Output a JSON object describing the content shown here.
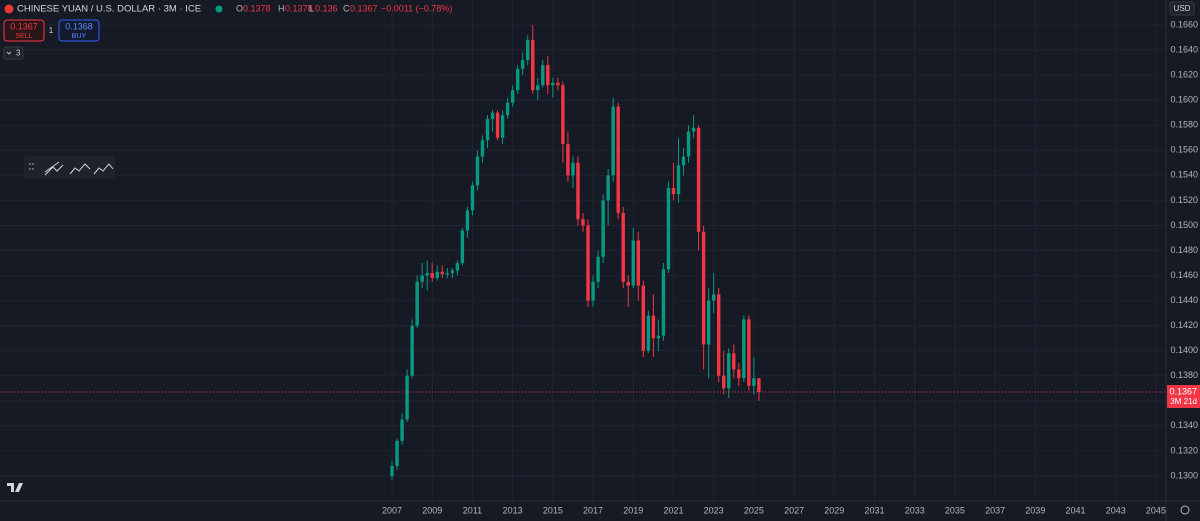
{
  "ui": {
    "symbol": "CHINESE YUAN / U.S. DOLLAR · 3M · ICE",
    "ohlc_labels": [
      "O",
      "H",
      "L",
      "C"
    ],
    "change": "−0.0011 (−0.78%)",
    "sell_label": "SELL",
    "quantity": "1",
    "buy_price": "0.1368",
    "buy_label": "BUY",
    "indicators": "3",
    "currency": "USD",
    "countdown": "3M 21d"
  },
  "chart_data": {
    "type": "candlestick",
    "title": "CHINESE YUAN / U.S. DOLLAR · 3M · ICE",
    "up_color": "#089981",
    "down_color": "#f23645",
    "grid": true,
    "x": [
      2007,
      2007.25,
      2007.5,
      2007.75,
      2008,
      2008.25,
      2008.5,
      2008.75,
      2009,
      2009.25,
      2009.5,
      2009.75,
      2010,
      2010.25,
      2010.5,
      2010.75,
      2011,
      2011.25,
      2011.5,
      2011.75,
      2012,
      2012.25,
      2012.5,
      2012.75,
      2013,
      2013.25,
      2013.5,
      2013.75,
      2014,
      2014.25,
      2014.5,
      2014.75,
      2015,
      2015.25,
      2015.5,
      2015.75,
      2016,
      2016.25,
      2016.5,
      2016.75,
      2017,
      2017.25,
      2017.5,
      2017.75,
      2018,
      2018.25,
      2018.5,
      2018.75,
      2019,
      2019.25,
      2019.5,
      2019.75,
      2020,
      2020.25,
      2020.5,
      2020.75,
      2021,
      2021.25,
      2021.5,
      2021.75,
      2022,
      2022.25,
      2022.5,
      2022.75,
      2023,
      2023.25,
      2023.5,
      2023.75,
      2024,
      2024.25,
      2024.5,
      2024.75,
      2025,
      2025.25
    ],
    "open": [
      0.13,
      0.1308,
      0.1328,
      0.1345,
      0.138,
      0.142,
      0.1455,
      0.146,
      0.1462,
      0.1458,
      0.1463,
      0.1461,
      0.1462,
      0.1464,
      0.147,
      0.1496,
      0.1512,
      0.1532,
      0.1555,
      0.1568,
      0.1585,
      0.159,
      0.157,
      0.1588,
      0.1598,
      0.1608,
      0.1625,
      0.1632,
      0.1648,
      0.1608,
      0.1612,
      0.1628,
      0.1612,
      0.1614,
      0.1612,
      0.1565,
      0.154,
      0.155,
      0.1505,
      0.15,
      0.144,
      0.1455,
      0.1475,
      0.152,
      0.154,
      0.1595,
      0.151,
      0.1455,
      0.1452,
      0.1488,
      0.1452,
      0.14,
      0.1428,
      0.141,
      0.1412,
      0.1465,
      0.153,
      0.1525,
      0.1548,
      0.1555,
      0.1575,
      0.1578,
      0.1495,
      0.1405,
      0.144,
      0.1445,
      0.138,
      0.137,
      0.1398,
      0.1385,
      0.1378,
      0.1425,
      0.1372,
      0.1378
    ],
    "high": [
      0.1312,
      0.133,
      0.135,
      0.1385,
      0.1425,
      0.146,
      0.147,
      0.1472,
      0.147,
      0.1468,
      0.1468,
      0.1466,
      0.1466,
      0.1472,
      0.1498,
      0.1515,
      0.1535,
      0.156,
      0.1572,
      0.1588,
      0.1592,
      0.1592,
      0.1592,
      0.1602,
      0.1612,
      0.1628,
      0.1638,
      0.1652,
      0.166,
      0.1618,
      0.1632,
      0.1635,
      0.1618,
      0.1618,
      0.1615,
      0.1575,
      0.1555,
      0.1555,
      0.151,
      0.1505,
      0.146,
      0.148,
      0.1525,
      0.1545,
      0.1602,
      0.1598,
      0.1515,
      0.146,
      0.1498,
      0.1495,
      0.1456,
      0.1432,
      0.1445,
      0.1425,
      0.147,
      0.1535,
      0.155,
      0.157,
      0.1562,
      0.158,
      0.1588,
      0.158,
      0.15,
      0.145,
      0.1462,
      0.145,
      0.14,
      0.1402,
      0.1405,
      0.139,
      0.1428,
      0.1428,
      0.1395,
      0.1378
    ],
    "low": [
      0.1297,
      0.1305,
      0.1325,
      0.1343,
      0.1378,
      0.1418,
      0.145,
      0.1448,
      0.1455,
      0.1456,
      0.1458,
      0.1458,
      0.1458,
      0.146,
      0.1468,
      0.149,
      0.1508,
      0.1528,
      0.155,
      0.1562,
      0.1575,
      0.1568,
      0.1565,
      0.1585,
      0.1595,
      0.1605,
      0.162,
      0.1628,
      0.1605,
      0.16,
      0.161,
      0.1605,
      0.1602,
      0.1608,
      0.155,
      0.1535,
      0.153,
      0.15,
      0.1495,
      0.1435,
      0.1435,
      0.145,
      0.147,
      0.15,
      0.1535,
      0.1505,
      0.145,
      0.1435,
      0.145,
      0.144,
      0.1395,
      0.1398,
      0.1395,
      0.14,
      0.1408,
      0.1462,
      0.152,
      0.1518,
      0.154,
      0.155,
      0.157,
      0.148,
      0.1385,
      0.1378,
      0.143,
      0.1375,
      0.1365,
      0.1362,
      0.1378,
      0.1372,
      0.1375,
      0.1368,
      0.1365,
      0.136
    ],
    "close": [
      0.1308,
      0.1328,
      0.1345,
      0.138,
      0.142,
      0.1455,
      0.146,
      0.1462,
      0.1458,
      0.1463,
      0.1461,
      0.1462,
      0.1464,
      0.147,
      0.1496,
      0.1512,
      0.1532,
      0.1555,
      0.1568,
      0.1585,
      0.159,
      0.157,
      0.1588,
      0.1598,
      0.1608,
      0.1625,
      0.1632,
      0.1648,
      0.1608,
      0.1612,
      0.1628,
      0.1612,
      0.1614,
      0.1612,
      0.1565,
      0.154,
      0.155,
      0.1505,
      0.15,
      0.144,
      0.1455,
      0.1475,
      0.152,
      0.154,
      0.1595,
      0.151,
      0.1455,
      0.1452,
      0.1488,
      0.1452,
      0.14,
      0.1428,
      0.141,
      0.1412,
      0.1465,
      0.153,
      0.1525,
      0.1548,
      0.1555,
      0.1575,
      0.1578,
      0.1495,
      0.1405,
      0.144,
      0.1445,
      0.138,
      0.137,
      0.1398,
      0.1385,
      0.1378,
      0.1425,
      0.1372,
      0.1378,
      0.1367
    ],
    "xlim": [
      1987.5,
      2045.5
    ],
    "xticks": [
      2007,
      2009,
      2011,
      2013,
      2015,
      2017,
      2019,
      2021,
      2023,
      2025,
      2027,
      2029,
      2031,
      2033,
      2035,
      2037,
      2039,
      2041,
      2043,
      2045
    ],
    "ylim": [
      0.128,
      0.168
    ],
    "yticks": [
      {
        "value": 0.13,
        "label": "0.1300"
      },
      {
        "value": 0.132,
        "label": "0.1320"
      },
      {
        "value": 0.134,
        "label": "0.1340"
      },
      {
        "value": 0.136,
        "label": "0.1360"
      },
      {
        "value": 0.138,
        "label": "0.1380"
      },
      {
        "value": 0.14,
        "label": "0.1400"
      },
      {
        "value": 0.142,
        "label": "0.1420"
      },
      {
        "value": 0.144,
        "label": "0.1440"
      },
      {
        "value": 0.146,
        "label": "0.1460"
      },
      {
        "value": 0.148,
        "label": "0.1480"
      },
      {
        "value": 0.15,
        "label": "0.1500"
      },
      {
        "value": 0.152,
        "label": "0.1520"
      },
      {
        "value": 0.154,
        "label": "0.1540"
      },
      {
        "value": 0.156,
        "label": "0.1560"
      },
      {
        "value": 0.158,
        "label": "0.1580"
      },
      {
        "value": 0.16,
        "label": "0.1600"
      },
      {
        "value": 0.162,
        "label": "0.1620"
      },
      {
        "value": 0.164,
        "label": "0.1640"
      },
      {
        "value": 0.166,
        "label": "0.1660"
      }
    ]
  }
}
